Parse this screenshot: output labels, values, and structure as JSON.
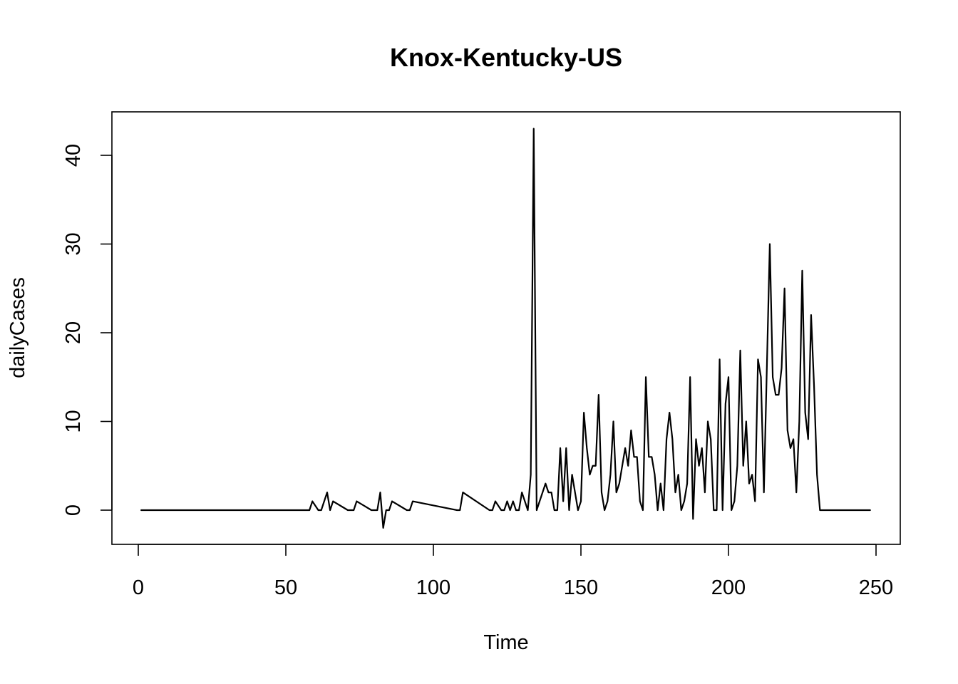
{
  "chart_data": {
    "type": "line",
    "title": "Knox-Kentucky-US",
    "xlabel": "Time",
    "ylabel": "dailyCases",
    "xlim": [
      1,
      248
    ],
    "ylim": [
      -2,
      43
    ],
    "x_ticks": [
      0,
      50,
      100,
      150,
      200,
      250
    ],
    "y_ticks": [
      0,
      10,
      20,
      30,
      40
    ],
    "grid": false,
    "legend": "none",
    "line_color": "#000000",
    "series": [
      {
        "x": [
          1,
          58,
          59,
          61,
          62,
          64,
          65,
          66,
          71,
          73,
          74,
          79,
          81,
          82,
          83,
          84,
          85,
          86,
          91,
          92,
          93,
          108,
          109,
          110,
          119,
          120,
          121,
          123,
          124,
          125,
          126,
          127,
          128,
          129,
          130,
          131,
          132,
          133,
          134,
          135,
          138,
          139,
          140,
          141,
          142,
          143,
          144,
          145,
          146,
          147,
          148,
          149,
          150,
          151,
          152,
          153,
          154,
          155,
          156,
          157,
          158,
          159,
          160,
          161,
          162,
          163,
          164,
          165,
          166,
          167,
          168,
          169,
          170,
          171,
          172,
          173,
          174,
          175,
          176,
          177,
          178,
          179,
          180,
          181,
          182,
          183,
          184,
          185,
          186,
          187,
          188,
          189,
          190,
          191,
          192,
          193,
          194,
          195,
          196,
          197,
          198,
          199,
          200,
          201,
          202,
          203,
          204,
          205,
          206,
          207,
          208,
          209,
          210,
          211,
          212,
          213,
          214,
          215,
          216,
          217,
          218,
          219,
          220,
          221,
          222,
          223,
          224,
          225,
          226,
          227,
          228,
          229,
          230,
          231,
          248
        ],
        "values": [
          0,
          0,
          1,
          0,
          0,
          2,
          0,
          1,
          0,
          0,
          1,
          0,
          0,
          2,
          -2,
          0,
          0,
          1,
          0,
          0,
          1,
          0,
          0,
          2,
          0,
          0,
          1,
          0,
          0,
          1,
          0,
          1,
          0,
          0,
          2,
          1,
          0,
          4,
          43,
          0,
          3,
          2,
          2,
          0,
          0,
          7,
          1,
          7,
          0,
          4,
          2,
          0,
          1,
          11,
          7,
          4,
          5,
          5,
          13,
          2,
          0,
          1,
          4,
          10,
          2,
          3,
          5,
          7,
          5,
          9,
          6,
          6,
          1,
          0,
          15,
          6,
          6,
          4,
          0,
          3,
          0,
          8,
          11,
          8,
          2,
          4,
          0,
          1,
          3,
          15,
          -1,
          8,
          5,
          7,
          2,
          10,
          8,
          0,
          0,
          17,
          0,
          12,
          15,
          0,
          1,
          5,
          18,
          5,
          10,
          3,
          4,
          1,
          17,
          15,
          2,
          16,
          30,
          15,
          13,
          13,
          16,
          25,
          9,
          7,
          8,
          2,
          10,
          27,
          11,
          8,
          22,
          14,
          4,
          0,
          0
        ]
      }
    ]
  }
}
